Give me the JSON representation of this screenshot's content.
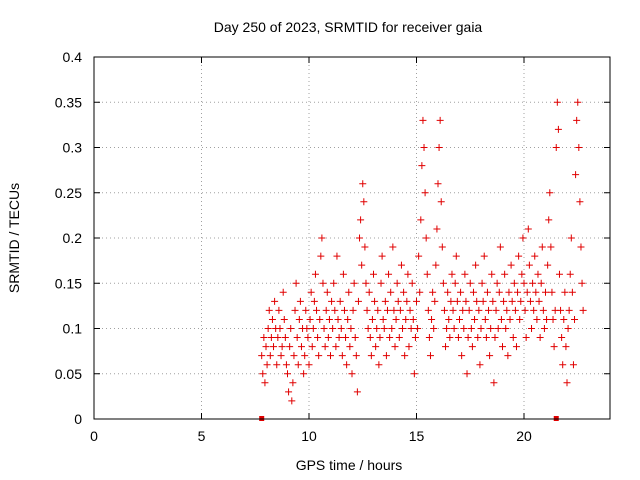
{
  "chart_data": {
    "type": "scatter",
    "title": "Day 250 of 2023, SRMTID for receiver gaia",
    "xlabel": "GPS time / hours",
    "ylabel": "SRMTID / TECUs",
    "xlim": [
      0,
      24
    ],
    "ylim": [
      0,
      0.4
    ],
    "xticks": [
      0,
      5,
      10,
      15,
      20
    ],
    "xtick_labels": [
      "0",
      "5",
      "10",
      "15",
      "20"
    ],
    "yticks": [
      0,
      0.05,
      0.1,
      0.15,
      0.2,
      0.25,
      0.3,
      0.35,
      0.4
    ],
    "ytick_labels": [
      "0",
      "0.05",
      "0.1",
      "0.15",
      "0.2",
      "0.25",
      "0.3",
      "0.35",
      "0.4"
    ],
    "grid": true,
    "marker_color": "#e00000",
    "marker": "+",
    "series": [
      {
        "name": "SRMTID",
        "points": [
          [
            7.8,
            0.07
          ],
          [
            7.85,
            0.05
          ],
          [
            7.9,
            0.09
          ],
          [
            7.95,
            0.04
          ],
          [
            8.0,
            0.08
          ],
          [
            8.05,
            0.06
          ],
          [
            8.1,
            0.1
          ],
          [
            8.15,
            0.12
          ],
          [
            8.2,
            0.07
          ],
          [
            8.25,
            0.09
          ],
          [
            8.3,
            0.11
          ],
          [
            8.35,
            0.08
          ],
          [
            8.4,
            0.13
          ],
          [
            8.45,
            0.1
          ],
          [
            8.5,
            0.06
          ],
          [
            8.55,
            0.09
          ],
          [
            8.6,
            0.12
          ],
          [
            8.65,
            0.1
          ],
          [
            8.7,
            0.07
          ],
          [
            8.75,
            0.08
          ],
          [
            8.8,
            0.14
          ],
          [
            8.85,
            0.11
          ],
          [
            8.9,
            0.09
          ],
          [
            8.95,
            0.06
          ],
          [
            9.0,
            0.05
          ],
          [
            9.05,
            0.03
          ],
          [
            9.1,
            0.08
          ],
          [
            9.15,
            0.1
          ],
          [
            9.2,
            0.02
          ],
          [
            9.25,
            0.04
          ],
          [
            9.3,
            0.07
          ],
          [
            9.35,
            0.12
          ],
          [
            9.4,
            0.15
          ],
          [
            9.45,
            0.09
          ],
          [
            9.5,
            0.06
          ],
          [
            9.55,
            0.11
          ],
          [
            9.6,
            0.13
          ],
          [
            9.65,
            0.08
          ],
          [
            9.7,
            0.1
          ],
          [
            9.75,
            0.05
          ],
          [
            9.8,
            0.07
          ],
          [
            9.85,
            0.12
          ],
          [
            9.9,
            0.1
          ],
          [
            9.95,
            0.09
          ],
          [
            10.0,
            0.06
          ],
          [
            10.05,
            0.11
          ],
          [
            10.1,
            0.14
          ],
          [
            10.15,
            0.08
          ],
          [
            10.2,
            0.1
          ],
          [
            10.25,
            0.13
          ],
          [
            10.3,
            0.16
          ],
          [
            10.35,
            0.12
          ],
          [
            10.4,
            0.09
          ],
          [
            10.45,
            0.07
          ],
          [
            10.5,
            0.11
          ],
          [
            10.55,
            0.18
          ],
          [
            10.6,
            0.2
          ],
          [
            10.65,
            0.15
          ],
          [
            10.7,
            0.1
          ],
          [
            10.75,
            0.08
          ],
          [
            10.8,
            0.12
          ],
          [
            10.85,
            0.14
          ],
          [
            10.9,
            0.09
          ],
          [
            10.95,
            0.11
          ],
          [
            11.0,
            0.07
          ],
          [
            11.05,
            0.13
          ],
          [
            11.1,
            0.1
          ],
          [
            11.15,
            0.15
          ],
          [
            11.2,
            0.12
          ],
          [
            11.25,
            0.08
          ],
          [
            11.3,
            0.18
          ],
          [
            11.35,
            0.11
          ],
          [
            11.4,
            0.09
          ],
          [
            11.45,
            0.13
          ],
          [
            11.5,
            0.1
          ],
          [
            11.55,
            0.07
          ],
          [
            11.6,
            0.16
          ],
          [
            11.65,
            0.12
          ],
          [
            11.7,
            0.09
          ],
          [
            11.75,
            0.06
          ],
          [
            11.8,
            0.11
          ],
          [
            11.85,
            0.14
          ],
          [
            11.9,
            0.08
          ],
          [
            11.95,
            0.1
          ],
          [
            12.0,
            0.05
          ],
          [
            12.05,
            0.12
          ],
          [
            12.1,
            0.15
          ],
          [
            12.15,
            0.09
          ],
          [
            12.2,
            0.07
          ],
          [
            12.25,
            0.03
          ],
          [
            12.3,
            0.13
          ],
          [
            12.35,
            0.2
          ],
          [
            12.4,
            0.22
          ],
          [
            12.45,
            0.17
          ],
          [
            12.5,
            0.26
          ],
          [
            12.55,
            0.24
          ],
          [
            12.6,
            0.19
          ],
          [
            12.65,
            0.15
          ],
          [
            12.7,
            0.12
          ],
          [
            12.75,
            0.1
          ],
          [
            12.8,
            0.14
          ],
          [
            12.85,
            0.09
          ],
          [
            12.9,
            0.07
          ],
          [
            12.95,
            0.11
          ],
          [
            13.0,
            0.16
          ],
          [
            13.05,
            0.13
          ],
          [
            13.1,
            0.08
          ],
          [
            13.15,
            0.1
          ],
          [
            13.2,
            0.12
          ],
          [
            13.25,
            0.06
          ],
          [
            13.3,
            0.09
          ],
          [
            13.35,
            0.15
          ],
          [
            13.4,
            0.18
          ],
          [
            13.45,
            0.11
          ],
          [
            13.5,
            0.1
          ],
          [
            13.55,
            0.13
          ],
          [
            13.6,
            0.07
          ],
          [
            13.65,
            0.12
          ],
          [
            13.7,
            0.16
          ],
          [
            13.75,
            0.09
          ],
          [
            13.8,
            0.14
          ],
          [
            13.85,
            0.1
          ],
          [
            13.9,
            0.19
          ],
          [
            13.95,
            0.12
          ],
          [
            14.0,
            0.08
          ],
          [
            14.05,
            0.11
          ],
          [
            14.1,
            0.15
          ],
          [
            14.15,
            0.13
          ],
          [
            14.2,
            0.09
          ],
          [
            14.25,
            0.12
          ],
          [
            14.3,
            0.17
          ],
          [
            14.35,
            0.1
          ],
          [
            14.4,
            0.14
          ],
          [
            14.45,
            0.07
          ],
          [
            14.5,
            0.11
          ],
          [
            14.55,
            0.13
          ],
          [
            14.6,
            0.16
          ],
          [
            14.65,
            0.08
          ],
          [
            14.7,
            0.12
          ],
          [
            14.75,
            0.1
          ],
          [
            14.8,
            0.15
          ],
          [
            14.85,
            0.11
          ],
          [
            14.9,
            0.05
          ],
          [
            14.95,
            0.09
          ],
          [
            15.0,
            0.13
          ],
          [
            15.05,
            0.1
          ],
          [
            15.1,
            0.18
          ],
          [
            15.15,
            0.14
          ],
          [
            15.2,
            0.22
          ],
          [
            15.25,
            0.28
          ],
          [
            15.3,
            0.33
          ],
          [
            15.35,
            0.3
          ],
          [
            15.4,
            0.25
          ],
          [
            15.45,
            0.2
          ],
          [
            15.5,
            0.16
          ],
          [
            15.55,
            0.12
          ],
          [
            15.6,
            0.09
          ],
          [
            15.65,
            0.07
          ],
          [
            15.7,
            0.11
          ],
          [
            15.75,
            0.14
          ],
          [
            15.8,
            0.1
          ],
          [
            15.85,
            0.13
          ],
          [
            15.9,
            0.17
          ],
          [
            15.95,
            0.21
          ],
          [
            16.0,
            0.26
          ],
          [
            16.05,
            0.3
          ],
          [
            16.1,
            0.33
          ],
          [
            16.15,
            0.24
          ],
          [
            16.2,
            0.19
          ],
          [
            16.25,
            0.15
          ],
          [
            16.3,
            0.12
          ],
          [
            16.35,
            0.08
          ],
          [
            16.4,
            0.1
          ],
          [
            16.45,
            0.14
          ],
          [
            16.5,
            0.11
          ],
          [
            16.55,
            0.09
          ],
          [
            16.6,
            0.13
          ],
          [
            16.65,
            0.16
          ],
          [
            16.7,
            0.12
          ],
          [
            16.75,
            0.1
          ],
          [
            16.8,
            0.15
          ],
          [
            16.85,
            0.18
          ],
          [
            16.9,
            0.13
          ],
          [
            16.95,
            0.09
          ],
          [
            17.0,
            0.11
          ],
          [
            17.05,
            0.14
          ],
          [
            17.1,
            0.07
          ],
          [
            17.15,
            0.12
          ],
          [
            17.2,
            0.1
          ],
          [
            17.25,
            0.16
          ],
          [
            17.3,
            0.13
          ],
          [
            17.35,
            0.05
          ],
          [
            17.4,
            0.09
          ],
          [
            17.45,
            0.12
          ],
          [
            17.5,
            0.15
          ],
          [
            17.55,
            0.1
          ],
          [
            17.6,
            0.08
          ],
          [
            17.65,
            0.14
          ],
          [
            17.7,
            0.11
          ],
          [
            17.75,
            0.17
          ],
          [
            17.8,
            0.13
          ],
          [
            17.85,
            0.09
          ],
          [
            17.9,
            0.12
          ],
          [
            17.95,
            0.06
          ],
          [
            18.0,
            0.1
          ],
          [
            18.05,
            0.15
          ],
          [
            18.1,
            0.13
          ],
          [
            18.15,
            0.18
          ],
          [
            18.2,
            0.11
          ],
          [
            18.25,
            0.09
          ],
          [
            18.3,
            0.14
          ],
          [
            18.35,
            0.12
          ],
          [
            18.4,
            0.07
          ],
          [
            18.45,
            0.1
          ],
          [
            18.5,
            0.16
          ],
          [
            18.55,
            0.13
          ],
          [
            18.6,
            0.04
          ],
          [
            18.65,
            0.09
          ],
          [
            18.7,
            0.12
          ],
          [
            18.75,
            0.15
          ],
          [
            18.8,
            0.1
          ],
          [
            18.85,
            0.14
          ],
          [
            18.9,
            0.19
          ],
          [
            18.95,
            0.11
          ],
          [
            19.0,
            0.08
          ],
          [
            19.05,
            0.13
          ],
          [
            19.1,
            0.16
          ],
          [
            19.15,
            0.1
          ],
          [
            19.2,
            0.12
          ],
          [
            19.25,
            0.07
          ],
          [
            19.3,
            0.14
          ],
          [
            19.35,
            0.11
          ],
          [
            19.4,
            0.17
          ],
          [
            19.45,
            0.13
          ],
          [
            19.5,
            0.09
          ],
          [
            19.55,
            0.15
          ],
          [
            19.6,
            0.12
          ],
          [
            19.65,
            0.08
          ],
          [
            19.7,
            0.14
          ],
          [
            19.75,
            0.18
          ],
          [
            19.8,
            0.11
          ],
          [
            19.85,
            0.13
          ],
          [
            19.9,
            0.16
          ],
          [
            19.95,
            0.2
          ],
          [
            20.0,
            0.15
          ],
          [
            20.05,
            0.12
          ],
          [
            20.1,
            0.09
          ],
          [
            20.15,
            0.14
          ],
          [
            20.2,
            0.21
          ],
          [
            20.25,
            0.17
          ],
          [
            20.3,
            0.13
          ],
          [
            20.35,
            0.1
          ],
          [
            20.4,
            0.15
          ],
          [
            20.45,
            0.12
          ],
          [
            20.5,
            0.18
          ],
          [
            20.55,
            0.14
          ],
          [
            20.6,
            0.11
          ],
          [
            20.65,
            0.16
          ],
          [
            20.7,
            0.13
          ],
          [
            20.75,
            0.09
          ],
          [
            20.8,
            0.15
          ],
          [
            20.85,
            0.19
          ],
          [
            20.9,
            0.12
          ],
          [
            20.95,
            0.1
          ],
          [
            21.0,
            0.14
          ],
          [
            21.05,
            0.11
          ],
          [
            21.1,
            0.17
          ],
          [
            21.15,
            0.22
          ],
          [
            21.2,
            0.25
          ],
          [
            21.25,
            0.19
          ],
          [
            21.3,
            0.14
          ],
          [
            21.35,
            0.11
          ],
          [
            21.4,
            0.08
          ],
          [
            21.45,
            0.12
          ],
          [
            21.5,
            0.3
          ],
          [
            21.55,
            0.35
          ],
          [
            21.6,
            0.32
          ],
          [
            21.65,
            0.16
          ],
          [
            21.7,
            0.12
          ],
          [
            21.75,
            0.09
          ],
          [
            21.8,
            0.06
          ],
          [
            21.85,
            0.11
          ],
          [
            21.9,
            0.14
          ],
          [
            21.95,
            0.08
          ],
          [
            22.0,
            0.04
          ],
          [
            22.05,
            0.1
          ],
          [
            22.1,
            0.12
          ],
          [
            22.15,
            0.16
          ],
          [
            22.2,
            0.2
          ],
          [
            22.25,
            0.14
          ],
          [
            22.3,
            0.06
          ],
          [
            22.35,
            0.11
          ],
          [
            22.4,
            0.27
          ],
          [
            22.45,
            0.33
          ],
          [
            22.5,
            0.35
          ],
          [
            22.55,
            0.3
          ],
          [
            22.6,
            0.24
          ],
          [
            22.65,
            0.19
          ],
          [
            22.7,
            0.15
          ],
          [
            22.75,
            0.12
          ]
        ]
      }
    ],
    "gap_markers_x": [
      7.8,
      21.5
    ]
  }
}
